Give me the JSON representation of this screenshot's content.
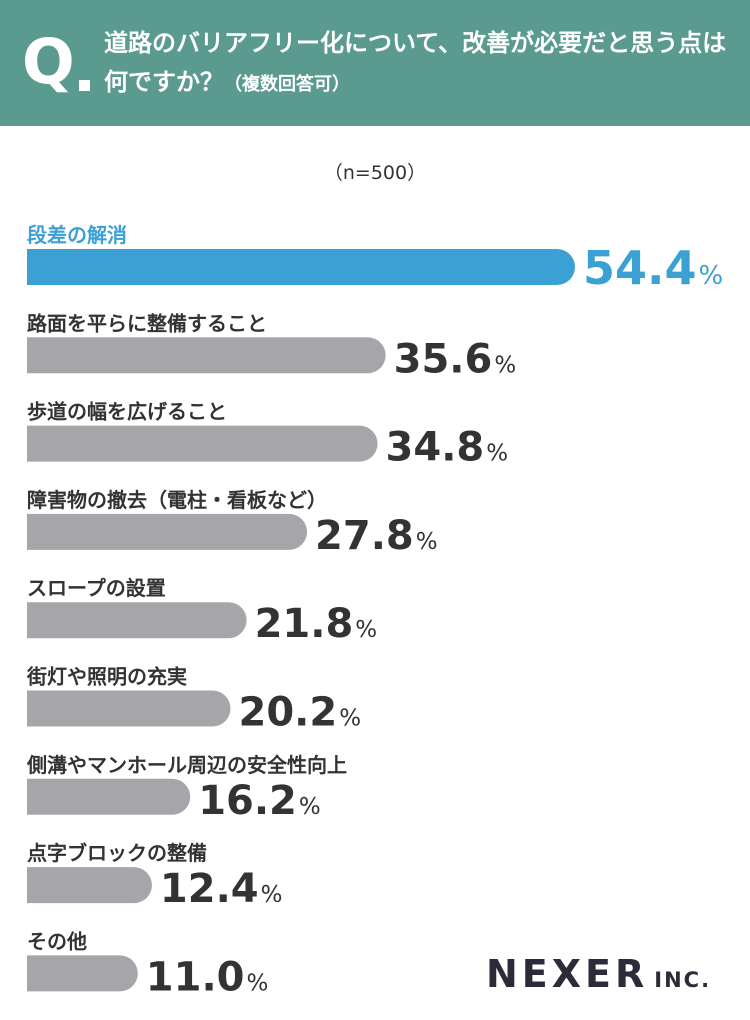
{
  "header": {
    "q_label": "Q",
    "question": "道路のバリアフリー化について、改善が必要だと思う点は何ですか？",
    "question_note": "（複数回答可）"
  },
  "sample_size": "（n=500）",
  "brand": {
    "name": "NEXER",
    "suffix": "INC."
  },
  "colors": {
    "highlight": "#3ba0d3",
    "bar": "#a5a5aa",
    "header": "#5a9a8f",
    "text": "#333333"
  },
  "chart_data": {
    "type": "bar",
    "orientation": "horizontal",
    "unit": "%",
    "xlim": [
      0,
      54.4
    ],
    "grid": false,
    "categories": [
      "段差の解消",
      "路面を平らに整備すること",
      "歩道の幅を広げること",
      "障害物の撤去（電柱・看板など）",
      "スロープの設置",
      "街灯や照明の充実",
      "側溝やマンホール周辺の安全性向上",
      "点字ブロックの整備",
      "その他"
    ],
    "values": [
      54.4,
      35.6,
      34.8,
      27.8,
      21.8,
      20.2,
      16.2,
      12.4,
      11.0
    ],
    "value_labels": [
      "54.4",
      "35.6",
      "34.8",
      "27.8",
      "21.8",
      "20.2",
      "16.2",
      "12.4",
      "11.0"
    ],
    "highlight_index": 0
  }
}
